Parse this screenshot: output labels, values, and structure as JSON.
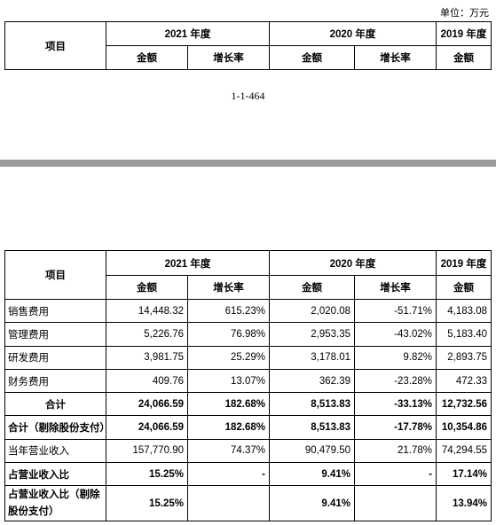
{
  "unit": "单位：万元",
  "page_number": "1-1-464",
  "header": {
    "item": "项目",
    "year_2021": "2021 年度",
    "year_2020": "2020 年度",
    "year_2019": "2019 年度",
    "amount": "金额",
    "growth": "增长率"
  },
  "rows": [
    {
      "label": "销售费用",
      "a2021": "14,448.32",
      "g2021": "615.23%",
      "a2020": "2,020.08",
      "g2020": "-51.71%",
      "a2019": "4,183.08"
    },
    {
      "label": "管理费用",
      "a2021": "5,226.76",
      "g2021": "76.98%",
      "a2020": "2,953.35",
      "g2020": "-43.02%",
      "a2019": "5,183.40"
    },
    {
      "label": "研发费用",
      "a2021": "3,981.75",
      "g2021": "25.29%",
      "a2020": "3,178.01",
      "g2020": "9.82%",
      "a2019": "2,893.75"
    },
    {
      "label": "财务费用",
      "a2021": "409.76",
      "g2021": "13.07%",
      "a2020": "362.39",
      "g2020": "-23.28%",
      "a2019": "472.33"
    },
    {
      "label": "合计",
      "a2021": "24,066.59",
      "g2021": "182.68%",
      "a2020": "8,513.83",
      "g2020": "-33.13%",
      "a2019": "12,732.56"
    },
    {
      "label": "合计（剔除股份支付）",
      "a2021": "24,066.59",
      "g2021": "182.68%",
      "a2020": "8,513.83",
      "g2020": "-17.78%",
      "a2019": "10,354.86"
    },
    {
      "label": "当年营业收入",
      "a2021": "157,770.90",
      "g2021": "74.37%",
      "a2020": "90,479.50",
      "g2020": "21.78%",
      "a2019": "74,294.55"
    },
    {
      "label": "占营业收入比",
      "a2021": "15.25%",
      "g2021": "-",
      "a2020": "9.41%",
      "g2020": "-",
      "a2019": "17.14%"
    },
    {
      "label": "占营业收入比（剔除股份支付）",
      "a2021": "15.25%",
      "g2021": "",
      "a2020": "9.41%",
      "g2020": "",
      "a2019": "13.94%"
    }
  ]
}
